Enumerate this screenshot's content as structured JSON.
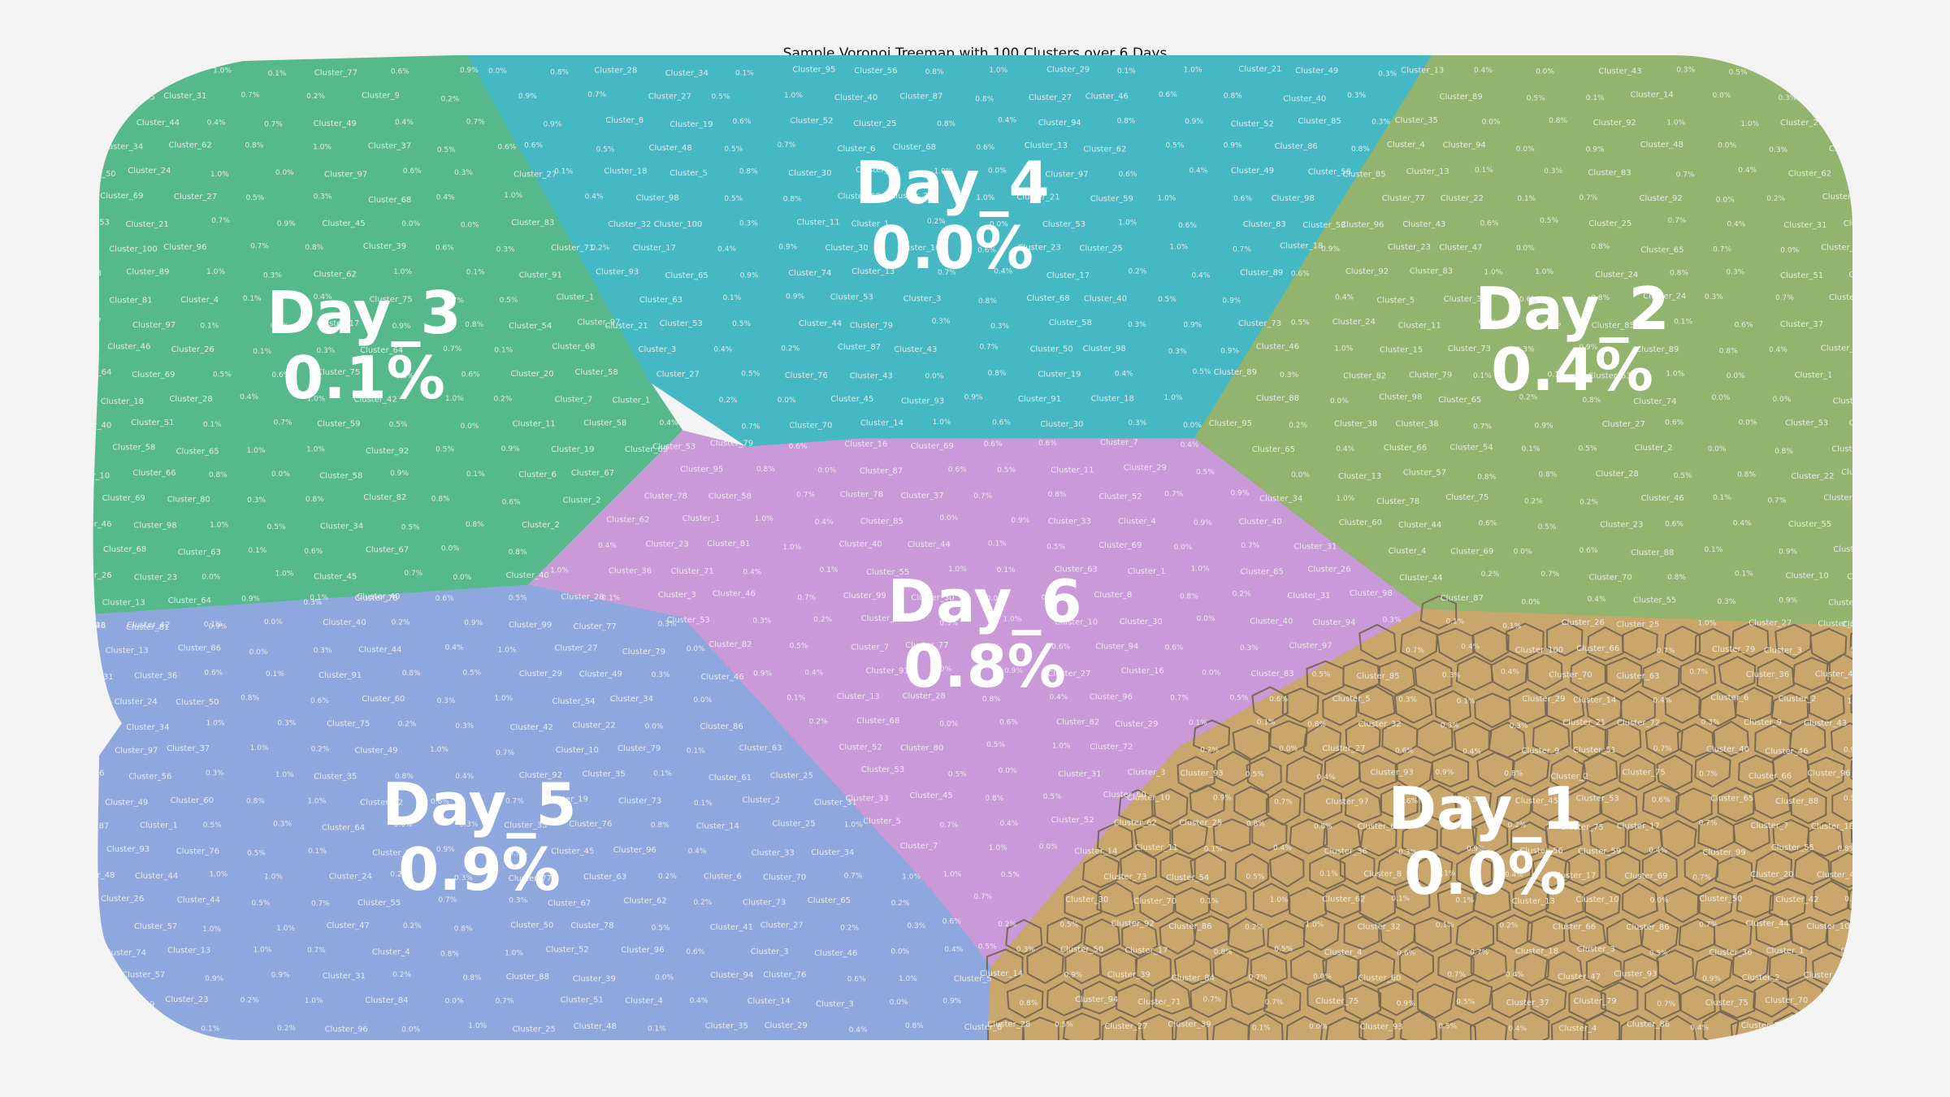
{
  "chart_data": {
    "type": "voronoi-treemap",
    "title": "Sample Voronoi Treemap with 100 Clusters over 6 Days",
    "groups": [
      {
        "name": "Day_1",
        "value_label": "0.0%",
        "color": "#c9a66b"
      },
      {
        "name": "Day_2",
        "value_label": "0.4%",
        "color": "#93b46e"
      },
      {
        "name": "Day_3",
        "value_label": "0.1%",
        "color": "#56b98c"
      },
      {
        "name": "Day_4",
        "value_label": "0.0%",
        "color": "#45b8c4"
      },
      {
        "name": "Day_5",
        "value_label": "0.9%",
        "color": "#8ea8de"
      },
      {
        "name": "Day_6",
        "value_label": "0.8%",
        "color": "#c999d8"
      }
    ],
    "cluster_count": 100,
    "cluster_prefix": "Cluster_",
    "leaf_value_labels": [
      "0.0%",
      "0.1%",
      "0.2%",
      "0.3%",
      "0.4%",
      "0.5%",
      "0.6%",
      "0.7%",
      "0.8%",
      "0.9%",
      "1.0%"
    ]
  }
}
